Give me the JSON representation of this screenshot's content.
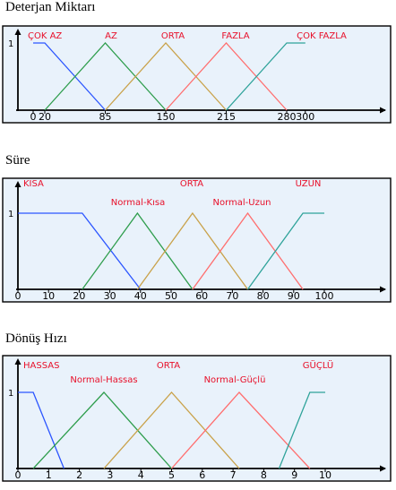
{
  "chart_data": [
    {
      "type": "line",
      "title": "Deterjan Miktarı",
      "xlim": [
        0,
        300
      ],
      "ylim": [
        0,
        1
      ],
      "y_tick_label": "1",
      "x_ticks": [
        0,
        20,
        85,
        150,
        215,
        280,
        300
      ],
      "series": [
        {
          "name": "ÇOK AZ",
          "color": "#2b55ff",
          "points": [
            [
              0,
              1
            ],
            [
              20,
              1
            ],
            [
              85,
              0
            ]
          ]
        },
        {
          "name": "AZ",
          "color": "#2e9d4c",
          "points": [
            [
              20,
              0
            ],
            [
              85,
              1
            ],
            [
              150,
              0
            ]
          ]
        },
        {
          "name": "ORTA",
          "color": "#c9a24a",
          "points": [
            [
              85,
              0
            ],
            [
              150,
              1
            ],
            [
              215,
              0
            ]
          ]
        },
        {
          "name": "FAZLA",
          "color": "#ff6e6e",
          "points": [
            [
              150,
              0
            ],
            [
              215,
              1
            ],
            [
              280,
              0
            ]
          ]
        },
        {
          "name": "ÇOK FAZLA",
          "color": "#2fa39a",
          "points": [
            [
              215,
              0
            ],
            [
              280,
              1
            ],
            [
              300,
              1
            ]
          ]
        }
      ]
    },
    {
      "type": "line",
      "title": "Süre",
      "xlim": [
        0,
        100
      ],
      "ylim": [
        0,
        1
      ],
      "y_tick_label": "1",
      "x_ticks": [
        0,
        10,
        20,
        30,
        40,
        50,
        60,
        70,
        80,
        90,
        100
      ],
      "series": [
        {
          "name": "KISA",
          "color": "#2b55ff",
          "points": [
            [
              0,
              1
            ],
            [
              21,
              1
            ],
            [
              40,
              0
            ]
          ]
        },
        {
          "name": "Normal-Kısa",
          "color": "#2e9d4c",
          "points": [
            [
              21,
              0
            ],
            [
              39,
              1
            ],
            [
              57,
              0
            ]
          ]
        },
        {
          "name": "ORTA",
          "color": "#c9a24a",
          "points": [
            [
              39,
              0
            ],
            [
              57,
              1
            ],
            [
              75,
              0
            ]
          ]
        },
        {
          "name": "Normal-Uzun",
          "color": "#ff6e6e",
          "points": [
            [
              57,
              0
            ],
            [
              75,
              1
            ],
            [
              93,
              0
            ]
          ]
        },
        {
          "name": "UZUN",
          "color": "#2fa39a",
          "points": [
            [
              75,
              0
            ],
            [
              93,
              1
            ],
            [
              100,
              1
            ]
          ]
        }
      ]
    },
    {
      "type": "line",
      "title": "Dönüş Hızı",
      "xlim": [
        0,
        10
      ],
      "ylim": [
        0,
        1
      ],
      "y_tick_label": "1",
      "x_ticks": [
        0,
        1,
        2,
        3,
        4,
        5,
        6,
        7,
        8,
        9,
        10
      ],
      "series": [
        {
          "name": "HASSAS",
          "color": "#2b55ff",
          "points": [
            [
              0,
              1
            ],
            [
              0.5,
              1
            ],
            [
              1.5,
              0
            ]
          ]
        },
        {
          "name": "Normal-Hassas",
          "color": "#2e9d4c",
          "points": [
            [
              0.5,
              0
            ],
            [
              2.8,
              1
            ],
            [
              5,
              0
            ]
          ]
        },
        {
          "name": "ORTA",
          "color": "#c9a24a",
          "points": [
            [
              2.8,
              0
            ],
            [
              5,
              1
            ],
            [
              7.2,
              0
            ]
          ]
        },
        {
          "name": "Normal-Güçlü",
          "color": "#ff6e6e",
          "points": [
            [
              5,
              0
            ],
            [
              7.2,
              1
            ],
            [
              9.5,
              0
            ]
          ]
        },
        {
          "name": "GÜÇLÜ",
          "color": "#2fa39a",
          "points": [
            [
              8.5,
              0
            ],
            [
              9.5,
              1
            ],
            [
              10,
              1
            ]
          ]
        }
      ]
    }
  ]
}
